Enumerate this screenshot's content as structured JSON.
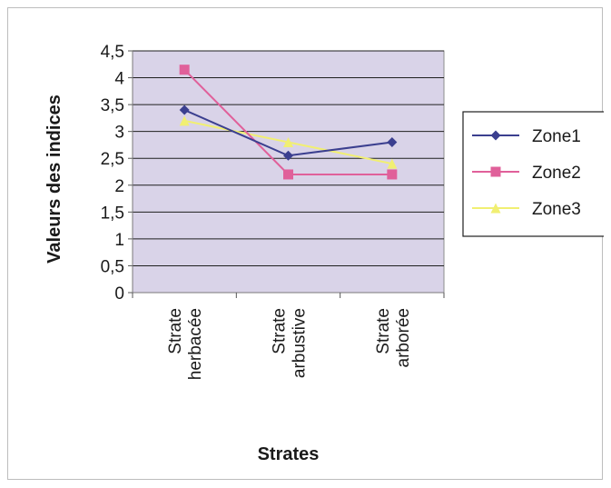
{
  "chart_data": {
    "type": "line",
    "categories": [
      [
        "Strate",
        "herbacée"
      ],
      [
        "Strate",
        "arbustive"
      ],
      [
        "Strate",
        "arborée"
      ]
    ],
    "series": [
      {
        "name": "Zone1",
        "values": [
          3.4,
          2.55,
          2.8
        ],
        "color": "#3b3f8f",
        "marker": "diamond"
      },
      {
        "name": "Zone2",
        "values": [
          4.15,
          2.2,
          2.2
        ],
        "color": "#e0609a",
        "marker": "square"
      },
      {
        "name": "Zone3",
        "values": [
          3.2,
          2.8,
          2.4
        ],
        "color": "#f1ef72",
        "marker": "triangle"
      }
    ],
    "xlabel": "Strates",
    "ylabel": "Valeurs des indices",
    "ylim": [
      0,
      4.5
    ],
    "yticks": [
      "0",
      "0,5",
      "1",
      "1,5",
      "2",
      "2,5",
      "3",
      "3,5",
      "4",
      "4,5"
    ],
    "grid": true,
    "plot_background": "#d9d3e8",
    "legend_position": "right"
  }
}
